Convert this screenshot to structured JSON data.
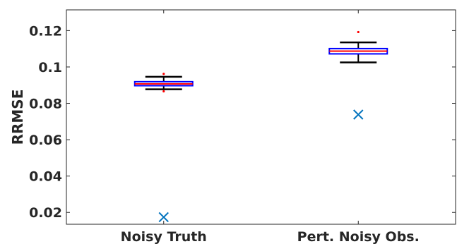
{
  "chart_data": {
    "type": "box",
    "title": "",
    "xlabel": "",
    "ylabel": "RRMSE",
    "categories": [
      "Noisy Truth",
      "Pert. Noisy Obs."
    ],
    "ylim": [
      0.0135,
      0.1314
    ],
    "yticks": [
      0.02,
      0.04,
      0.06,
      0.08,
      0.1,
      0.12
    ],
    "ytick_labels": [
      "0.02",
      "0.04",
      "0.06",
      "0.08",
      "0.1",
      "0.12"
    ],
    "grid": false,
    "boxes": [
      {
        "category": "Noisy Truth",
        "whisker_low": 0.0877,
        "q1": 0.0897,
        "median": 0.0907,
        "q3": 0.0919,
        "whisker_high": 0.0946,
        "outliers": [
          0.0962,
          0.0866
        ],
        "marker_x": 0.0174
      },
      {
        "category": "Pert. Noisy Obs.",
        "whisker_low": 0.1025,
        "q1": 0.1072,
        "median": 0.1087,
        "q3": 0.1101,
        "whisker_high": 0.1135,
        "outliers": [
          0.1192
        ],
        "marker_x": 0.0738
      }
    ],
    "colors": {
      "box": "#0000ff",
      "median": "#ff0000",
      "whisker": "#000000",
      "outlier": "#ff0000",
      "marker": "#0072bd",
      "axes": "#262626"
    }
  }
}
